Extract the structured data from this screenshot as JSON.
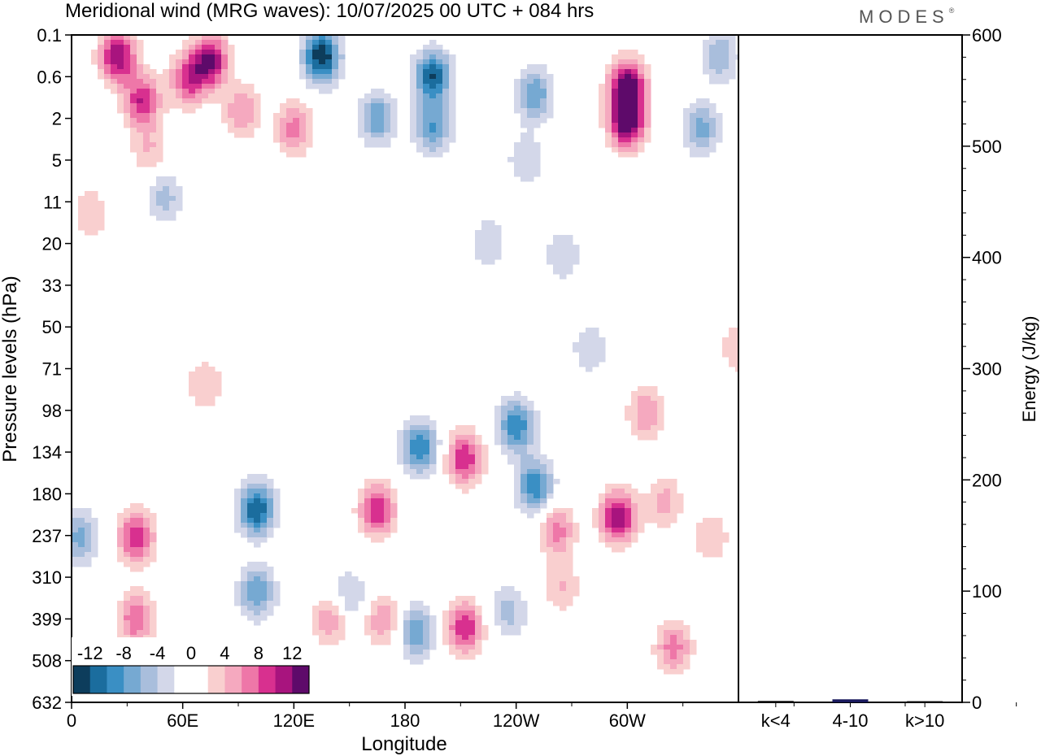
{
  "chart_data": {
    "type": "heatmap",
    "title": "Meridional wind (MRG waves):  10/07/2025  00 UTC  + 084 hrs",
    "brand": "MODES",
    "xlabel": "Longitude",
    "ylabel": "Pressure levels (hPa)",
    "y2label": "Energy (J/kg)",
    "x_ticks": [
      "0",
      "60E",
      "120E",
      "180",
      "120W",
      "60W"
    ],
    "y_ticks": [
      "0.1",
      "0.6",
      "2",
      "5",
      "11",
      "20",
      "33",
      "50",
      "71",
      "98",
      "134",
      "180",
      "237",
      "310",
      "399",
      "508",
      "632"
    ],
    "y2_ticks": [
      0,
      100,
      200,
      300,
      400,
      500,
      600
    ],
    "y2lim": [
      0,
      600
    ],
    "colorbar": {
      "tick_labels": [
        "-12",
        "-8",
        "-4",
        "0",
        "4",
        "8",
        "12"
      ],
      "colors": [
        "#0d3d5c",
        "#1b6d9e",
        "#3a8fc4",
        "#76a9d2",
        "#a9bedc",
        "#d3d7e9",
        "#ffffff",
        "#ffffff",
        "#f9cfcf",
        "#f5a9bf",
        "#ee77a8",
        "#d8308f",
        "#a8147e",
        "#5e0a6a"
      ]
    },
    "energy_bars": {
      "categories": [
        "k<4",
        "4-10",
        "k>10"
      ],
      "values": [
        0.5,
        2,
        0.3
      ],
      "colors": [
        "#000000",
        "#1a1a5e",
        "#000000"
      ]
    },
    "field_blobs": [
      {
        "lon": 25,
        "p": 0.25,
        "value": 12
      },
      {
        "lon": 38,
        "p": 1.2,
        "value": 10
      },
      {
        "lon": 75,
        "p": 0.3,
        "value": 12
      },
      {
        "lon": 63,
        "p": 0.65,
        "value": 9
      },
      {
        "lon": 92,
        "p": 1.6,
        "value": 6
      },
      {
        "lon": 120,
        "p": 2.5,
        "value": 7
      },
      {
        "lon": 42,
        "p": 4,
        "value": 4
      },
      {
        "lon": 50,
        "p": 10,
        "value": -5
      },
      {
        "lon": 135,
        "p": 0.25,
        "value": -14
      },
      {
        "lon": 195,
        "p": 0.6,
        "value": -12
      },
      {
        "lon": 165,
        "p": 2,
        "value": -8
      },
      {
        "lon": 195,
        "p": 2.5,
        "value": -8
      },
      {
        "lon": 250,
        "p": 1.0,
        "value": -8
      },
      {
        "lon": 245,
        "p": 5,
        "value": -4
      },
      {
        "lon": 300,
        "p": 0.8,
        "value": 14
      },
      {
        "lon": 300,
        "p": 2.2,
        "value": 14
      },
      {
        "lon": 340,
        "p": 2.5,
        "value": -7
      },
      {
        "lon": 350,
        "p": 0.25,
        "value": -6
      },
      {
        "lon": 10,
        "p": 13,
        "value": 4
      },
      {
        "lon": 225,
        "p": 20,
        "value": -4
      },
      {
        "lon": 265,
        "p": 23,
        "value": -4
      },
      {
        "lon": 280,
        "p": 60,
        "value": -4
      },
      {
        "lon": 360,
        "p": 60,
        "value": 4
      },
      {
        "lon": 72,
        "p": 80,
        "value": 4
      },
      {
        "lon": 5,
        "p": 240,
        "value": -7
      },
      {
        "lon": 35,
        "p": 240,
        "value": 10
      },
      {
        "lon": 35,
        "p": 400,
        "value": 8
      },
      {
        "lon": 100,
        "p": 200,
        "value": -12
      },
      {
        "lon": 100,
        "p": 340,
        "value": -8
      },
      {
        "lon": 150,
        "p": 350,
        "value": -5
      },
      {
        "lon": 140,
        "p": 400,
        "value": 6
      },
      {
        "lon": 165,
        "p": 200,
        "value": 10
      },
      {
        "lon": 168,
        "p": 400,
        "value": 6
      },
      {
        "lon": 188,
        "p": 130,
        "value": -10
      },
      {
        "lon": 186,
        "p": 430,
        "value": -8
      },
      {
        "lon": 212,
        "p": 140,
        "value": 10
      },
      {
        "lon": 212,
        "p": 420,
        "value": 10
      },
      {
        "lon": 240,
        "p": 110,
        "value": -10
      },
      {
        "lon": 250,
        "p": 170,
        "value": -10
      },
      {
        "lon": 236,
        "p": 380,
        "value": -5
      },
      {
        "lon": 262,
        "p": 230,
        "value": 7
      },
      {
        "lon": 265,
        "p": 330,
        "value": 4
      },
      {
        "lon": 295,
        "p": 210,
        "value": 12
      },
      {
        "lon": 310,
        "p": 100,
        "value": 6
      },
      {
        "lon": 320,
        "p": 190,
        "value": 5
      },
      {
        "lon": 325,
        "p": 470,
        "value": 7
      },
      {
        "lon": 345,
        "p": 240,
        "value": 4
      }
    ]
  }
}
